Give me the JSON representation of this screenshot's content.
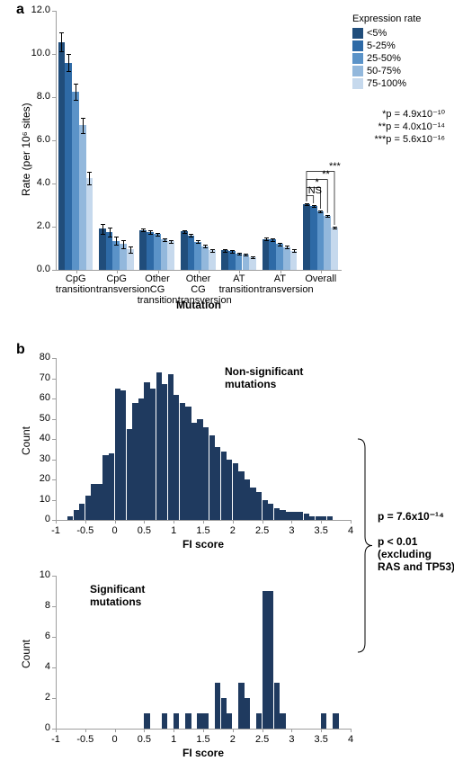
{
  "panelA": {
    "label": "a",
    "ylabel": "Rate (per 10⁶ sites)",
    "xlabel": "Mutation",
    "ylim": [
      0,
      12
    ],
    "ytick_step": 2.0,
    "y_decimals": 1,
    "categories": [
      "CpG transition",
      "CpG transversion",
      "Other CG transition",
      "Other CG transversion",
      "AT transition",
      "AT transversion",
      "Overall"
    ],
    "categories_split": [
      [
        "CpG",
        "transition"
      ],
      [
        "CpG",
        "transversion"
      ],
      [
        "Other CG",
        "transition"
      ],
      [
        "Other CG",
        "transversion"
      ],
      [
        "AT transition",
        ""
      ],
      [
        "AT",
        "transversion"
      ],
      [
        "Overall",
        ""
      ]
    ],
    "groups": [
      {
        "label": "<5%",
        "color": "#204d7b"
      },
      {
        "label": "5-25%",
        "color": "#2e6aa6"
      },
      {
        "label": "25-50%",
        "color": "#5b93c8"
      },
      {
        "label": "50-75%",
        "color": "#93b8dc"
      },
      {
        "label": "75-100%",
        "color": "#c6d9ed"
      }
    ],
    "values": [
      [
        10.55,
        9.6,
        8.25,
        6.7,
        4.25
      ],
      [
        1.9,
        1.75,
        1.35,
        1.2,
        0.95
      ],
      [
        1.85,
        1.75,
        1.65,
        1.4,
        1.32
      ],
      [
        1.78,
        1.6,
        1.3,
        1.1,
        0.9
      ],
      [
        0.9,
        0.86,
        0.76,
        0.7,
        0.58
      ],
      [
        1.42,
        1.4,
        1.2,
        1.05,
        0.88
      ],
      [
        3.05,
        2.95,
        2.7,
        2.5,
        1.95
      ]
    ],
    "errors": [
      [
        0.43,
        0.4,
        0.38,
        0.35,
        0.28
      ],
      [
        0.22,
        0.2,
        0.2,
        0.18,
        0.15
      ],
      [
        0.07,
        0.07,
        0.07,
        0.07,
        0.07
      ],
      [
        0.07,
        0.07,
        0.07,
        0.07,
        0.07
      ],
      [
        0.05,
        0.05,
        0.05,
        0.05,
        0.05
      ],
      [
        0.06,
        0.06,
        0.06,
        0.06,
        0.06
      ],
      [
        0.05,
        0.05,
        0.05,
        0.05,
        0.05
      ]
    ],
    "legend_title": "Expression rate",
    "sig_overall": [
      "NS",
      "*",
      "**",
      "***"
    ],
    "pvalues": [
      "*p = 4.9x10⁻¹⁰",
      "**p = 4.0x10⁻¹⁴",
      "***p = 5.6x10⁻¹⁶"
    ],
    "axis_color": "#9e9e9e",
    "background": "#ffffff"
  },
  "panelB": {
    "label": "b",
    "xlabel": "FI score",
    "ylabel": "Count",
    "xlim": [
      -1,
      4
    ],
    "xtick_step": 0.5,
    "bin_width": 0.1,
    "bar_color": "#1f3a5f",
    "top": {
      "title": "Non-significant mutations",
      "ylim": [
        0,
        80
      ],
      "ytick_step": 10,
      "bins": [
        {
          "x": -0.8,
          "c": 2
        },
        {
          "x": -0.7,
          "c": 5
        },
        {
          "x": -0.6,
          "c": 8
        },
        {
          "x": -0.5,
          "c": 12
        },
        {
          "x": -0.4,
          "c": 18
        },
        {
          "x": -0.3,
          "c": 18
        },
        {
          "x": -0.2,
          "c": 32
        },
        {
          "x": -0.1,
          "c": 33
        },
        {
          "x": 0.0,
          "c": 65
        },
        {
          "x": 0.1,
          "c": 64
        },
        {
          "x": 0.2,
          "c": 45
        },
        {
          "x": 0.3,
          "c": 58
        },
        {
          "x": 0.4,
          "c": 60
        },
        {
          "x": 0.5,
          "c": 68
        },
        {
          "x": 0.6,
          "c": 65
        },
        {
          "x": 0.7,
          "c": 73
        },
        {
          "x": 0.8,
          "c": 67
        },
        {
          "x": 0.9,
          "c": 72
        },
        {
          "x": 1.0,
          "c": 62
        },
        {
          "x": 1.1,
          "c": 58
        },
        {
          "x": 1.2,
          "c": 56
        },
        {
          "x": 1.3,
          "c": 48
        },
        {
          "x": 1.4,
          "c": 50
        },
        {
          "x": 1.5,
          "c": 46
        },
        {
          "x": 1.6,
          "c": 42
        },
        {
          "x": 1.7,
          "c": 36
        },
        {
          "x": 1.8,
          "c": 34
        },
        {
          "x": 1.9,
          "c": 30
        },
        {
          "x": 2.0,
          "c": 28
        },
        {
          "x": 2.1,
          "c": 24
        },
        {
          "x": 2.2,
          "c": 20
        },
        {
          "x": 2.3,
          "c": 16
        },
        {
          "x": 2.4,
          "c": 14
        },
        {
          "x": 2.5,
          "c": 10
        },
        {
          "x": 2.6,
          "c": 8
        },
        {
          "x": 2.7,
          "c": 6
        },
        {
          "x": 2.8,
          "c": 5
        },
        {
          "x": 2.9,
          "c": 4
        },
        {
          "x": 3.0,
          "c": 4
        },
        {
          "x": 3.1,
          "c": 4
        },
        {
          "x": 3.2,
          "c": 3
        },
        {
          "x": 3.3,
          "c": 2
        },
        {
          "x": 3.4,
          "c": 2
        },
        {
          "x": 3.5,
          "c": 2
        },
        {
          "x": 3.6,
          "c": 2
        }
      ]
    },
    "bottom": {
      "title": "Significant mutations",
      "ylim": [
        0,
        10
      ],
      "ytick_step": 2,
      "bins": [
        {
          "x": 0.5,
          "c": 1
        },
        {
          "x": 0.8,
          "c": 1
        },
        {
          "x": 1.0,
          "c": 1
        },
        {
          "x": 1.2,
          "c": 1
        },
        {
          "x": 1.4,
          "c": 1
        },
        {
          "x": 1.5,
          "c": 1
        },
        {
          "x": 1.7,
          "c": 3
        },
        {
          "x": 1.8,
          "c": 2
        },
        {
          "x": 1.9,
          "c": 1
        },
        {
          "x": 2.1,
          "c": 3
        },
        {
          "x": 2.2,
          "c": 2
        },
        {
          "x": 2.4,
          "c": 1
        },
        {
          "x": 2.5,
          "c": 9
        },
        {
          "x": 2.6,
          "c": 9
        },
        {
          "x": 2.7,
          "c": 3
        },
        {
          "x": 2.8,
          "c": 1
        },
        {
          "x": 3.5,
          "c": 1
        },
        {
          "x": 3.7,
          "c": 1
        }
      ]
    },
    "compare_annot": [
      "p = 7.6x10⁻¹⁴",
      "p < 0.01",
      "(excluding",
      "RAS and TP53)"
    ],
    "axis_color": "#9e9e9e",
    "background": "#ffffff"
  }
}
